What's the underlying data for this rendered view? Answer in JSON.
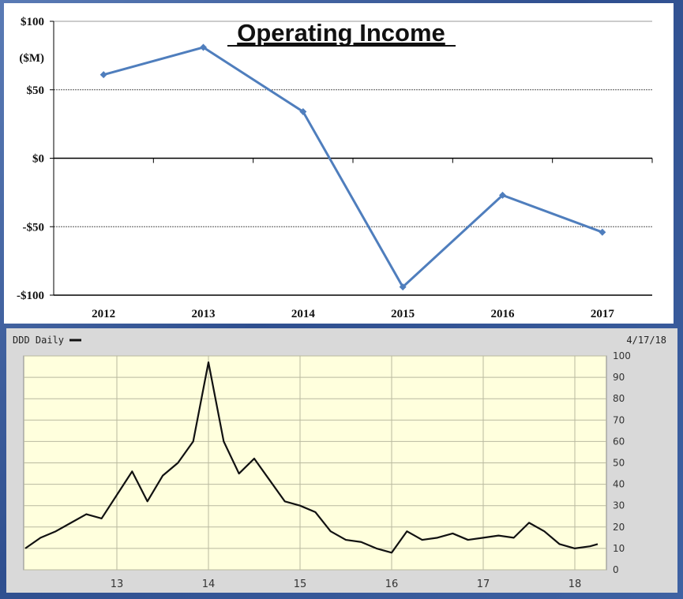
{
  "chart_data": [
    {
      "type": "line",
      "title": "Operating Income",
      "ylabel": "($M)",
      "categories": [
        "2012",
        "2013",
        "2014",
        "2015",
        "2016",
        "2017"
      ],
      "values": [
        61,
        81,
        34,
        -94,
        -27,
        -54
      ],
      "ylim": [
        -100,
        100
      ],
      "yticks": [
        "$100",
        "$50",
        "$0",
        "-$50",
        "-$100"
      ],
      "line_color": "#4f7ebd",
      "grid": true
    },
    {
      "type": "line",
      "title": "DDD Daily",
      "date_label": "4/17/18",
      "x_ticks": [
        "13",
        "14",
        "15",
        "16",
        "17",
        "18"
      ],
      "y_ticks": [
        "100",
        "90",
        "80",
        "70",
        "60",
        "50",
        "40",
        "30",
        "20",
        "10",
        "0"
      ],
      "ylim": [
        0,
        100
      ],
      "x": [
        "2012-01",
        "2012-03",
        "2012-05",
        "2012-07",
        "2012-09",
        "2012-11",
        "2013-01",
        "2013-03",
        "2013-05",
        "2013-07",
        "2013-09",
        "2013-11",
        "2014-01",
        "2014-03",
        "2014-05",
        "2014-07",
        "2014-09",
        "2014-11",
        "2015-01",
        "2015-03",
        "2015-05",
        "2015-07",
        "2015-09",
        "2015-11",
        "2016-01",
        "2016-03",
        "2016-05",
        "2016-07",
        "2016-09",
        "2016-11",
        "2017-01",
        "2017-03",
        "2017-05",
        "2017-07",
        "2017-09",
        "2017-11",
        "2018-01",
        "2018-03",
        "2018-04"
      ],
      "values": [
        10,
        15,
        18,
        22,
        26,
        24,
        35,
        46,
        32,
        44,
        50,
        60,
        97,
        60,
        45,
        52,
        42,
        32,
        30,
        27,
        18,
        14,
        13,
        10,
        8,
        18,
        14,
        15,
        17,
        14,
        15,
        16,
        15,
        22,
        18,
        12,
        10,
        11,
        12
      ],
      "background": "#ffffdd",
      "grid": true
    }
  ]
}
